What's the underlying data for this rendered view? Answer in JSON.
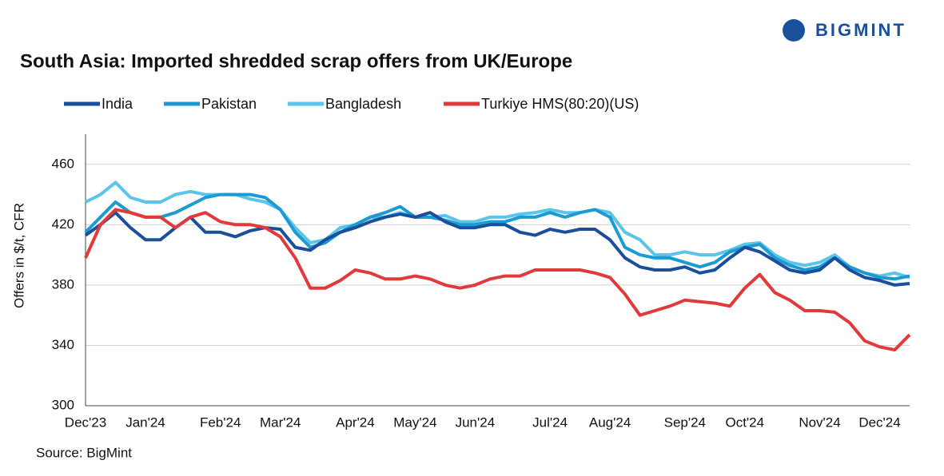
{
  "header": {
    "logo": "BIGMINT"
  },
  "chart_data": {
    "type": "line",
    "title": "South Asia: Imported shredded scrap offers from UK/Europe",
    "y_label": "Offers in $/t, CFR",
    "source": "Source: BigMint",
    "categories": [
      "Dec'23",
      null,
      null,
      null,
      "Jan'24",
      null,
      null,
      null,
      null,
      "Feb'24",
      null,
      null,
      null,
      "Mar'24",
      null,
      null,
      null,
      null,
      "Apr'24",
      null,
      null,
      null,
      "May'24",
      null,
      null,
      null,
      "Jun'24",
      null,
      null,
      null,
      null,
      "Jul'24",
      null,
      null,
      null,
      "Aug'24",
      null,
      null,
      null,
      null,
      "Sep'24",
      null,
      null,
      null,
      "Oct'24",
      null,
      null,
      null,
      null,
      "Nov'24",
      null,
      null,
      null,
      "Dec'24",
      null,
      null
    ],
    "series": [
      {
        "name": "India",
        "color": "#1a4f9c",
        "values": [
          413,
          420,
          428,
          418,
          410,
          410,
          418,
          425,
          415,
          415,
          412,
          416,
          418,
          417,
          405,
          403,
          410,
          415,
          418,
          422,
          425,
          427,
          425,
          428,
          422,
          418,
          418,
          420,
          420,
          415,
          413,
          417,
          415,
          417,
          417,
          410,
          398,
          392,
          390,
          390,
          392,
          388,
          390,
          398,
          405,
          402,
          396,
          390,
          388,
          390,
          398,
          390,
          385,
          383,
          380,
          381
        ]
      },
      {
        "name": "Pakistan",
        "color": "#1b9bd1",
        "values": [
          415,
          425,
          435,
          428,
          425,
          425,
          428,
          433,
          438,
          440,
          440,
          440,
          438,
          430,
          415,
          405,
          408,
          415,
          420,
          425,
          428,
          432,
          425,
          425,
          423,
          420,
          420,
          422,
          422,
          425,
          425,
          428,
          425,
          428,
          430,
          425,
          405,
          400,
          398,
          398,
          395,
          392,
          395,
          402,
          405,
          407,
          398,
          393,
          390,
          392,
          398,
          392,
          388,
          385,
          384,
          386
        ]
      },
      {
        "name": "Bangladesh",
        "color": "#5bc4ea",
        "values": [
          435,
          440,
          448,
          438,
          435,
          435,
          440,
          442,
          440,
          440,
          440,
          437,
          435,
          430,
          418,
          408,
          410,
          418,
          420,
          425,
          425,
          428,
          425,
          425,
          426,
          422,
          422,
          425,
          425,
          427,
          428,
          430,
          428,
          428,
          430,
          428,
          415,
          410,
          400,
          400,
          402,
          400,
          400,
          403,
          407,
          408,
          400,
          395,
          393,
          395,
          400,
          392,
          388,
          386,
          388,
          385
        ]
      },
      {
        "name": "Turkiye HMS(80:20)(US)",
        "color": "#e03a3a",
        "values": [
          398,
          420,
          430,
          428,
          425,
          425,
          418,
          425,
          428,
          422,
          420,
          420,
          418,
          412,
          398,
          378,
          378,
          383,
          390,
          388,
          384,
          384,
          386,
          384,
          380,
          378,
          380,
          384,
          386,
          386,
          390,
          390,
          390,
          390,
          388,
          385,
          374,
          360,
          363,
          366,
          370,
          369,
          368,
          366,
          378,
          387,
          375,
          370,
          363,
          363,
          362,
          355,
          343,
          339,
          337,
          347
        ]
      }
    ],
    "ylim": [
      300,
      480
    ],
    "yticks": [
      300,
      340,
      380,
      420,
      460
    ],
    "grid": true
  }
}
